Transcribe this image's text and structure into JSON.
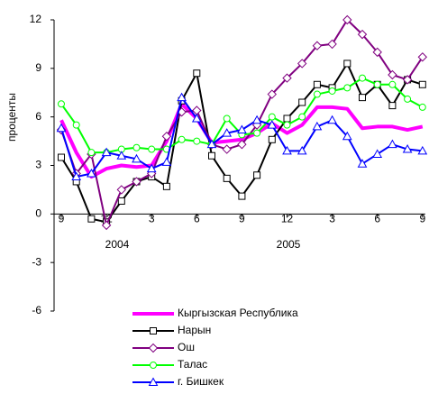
{
  "chart_data": {
    "type": "line",
    "y_label": "проценты",
    "categories": [
      "9",
      null,
      null,
      "12",
      null,
      null,
      "3",
      null,
      null,
      "6",
      null,
      null,
      "9",
      null,
      null,
      "12",
      null,
      null,
      "3",
      null,
      null,
      "6",
      null,
      null,
      "9"
    ],
    "annotations": [
      "2004",
      "2005"
    ],
    "ylim": [
      -6,
      12
    ],
    "yticks": [
      -6,
      -3,
      0,
      3,
      6,
      9,
      12
    ],
    "series": [
      {
        "name": "Кыргызская Республика",
        "color": "#ff00ff",
        "marker": "none",
        "values": [
          5.8,
          3.8,
          2.3,
          2.8,
          3.0,
          2.9,
          3.0,
          4.5,
          6.8,
          5.9,
          4.4,
          4.5,
          4.6,
          5.0,
          5.6,
          5.0,
          5.5,
          6.6,
          6.6,
          6.5,
          5.3,
          5.4,
          5.4,
          5.2,
          5.4
        ]
      },
      {
        "name": "Нарын",
        "color": "#000000",
        "marker": "square",
        "values": [
          3.5,
          2.0,
          -0.3,
          -0.5,
          0.8,
          2.0,
          2.3,
          1.7,
          7.0,
          8.7,
          3.6,
          2.2,
          1.1,
          2.4,
          4.6,
          5.9,
          6.9,
          8.0,
          7.8,
          9.3,
          7.2,
          8.0,
          6.7,
          8.3,
          8.0
        ]
      },
      {
        "name": "Ош",
        "color": "#800080",
        "marker": "diamond",
        "values": [
          5.2,
          2.5,
          3.7,
          -0.7,
          1.5,
          2.0,
          2.5,
          4.8,
          6.3,
          6.4,
          4.3,
          4.0,
          4.3,
          5.5,
          7.4,
          8.4,
          9.3,
          10.4,
          10.5,
          12.0,
          11.1,
          10.0,
          8.6,
          8.3,
          9.7
        ]
      },
      {
        "name": "Талас",
        "color": "#00ff00",
        "marker": "circle",
        "values": [
          6.8,
          5.5,
          3.8,
          3.8,
          4.0,
          4.1,
          4.0,
          4.0,
          4.6,
          4.5,
          4.3,
          5.9,
          4.9,
          5.0,
          6.0,
          5.5,
          6.0,
          7.4,
          7.6,
          7.8,
          8.4,
          8.0,
          8.0,
          7.1,
          6.6
        ]
      },
      {
        "name": "г. Бишкек",
        "color": "#0000ff",
        "marker": "triangle",
        "values": [
          5.3,
          2.3,
          2.5,
          3.8,
          3.6,
          3.4,
          2.8,
          3.2,
          7.2,
          5.9,
          4.3,
          5.0,
          5.2,
          5.8,
          5.5,
          3.9,
          3.9,
          5.4,
          5.8,
          4.8,
          3.1,
          3.7,
          4.3,
          4.0,
          3.9
        ]
      }
    ]
  }
}
